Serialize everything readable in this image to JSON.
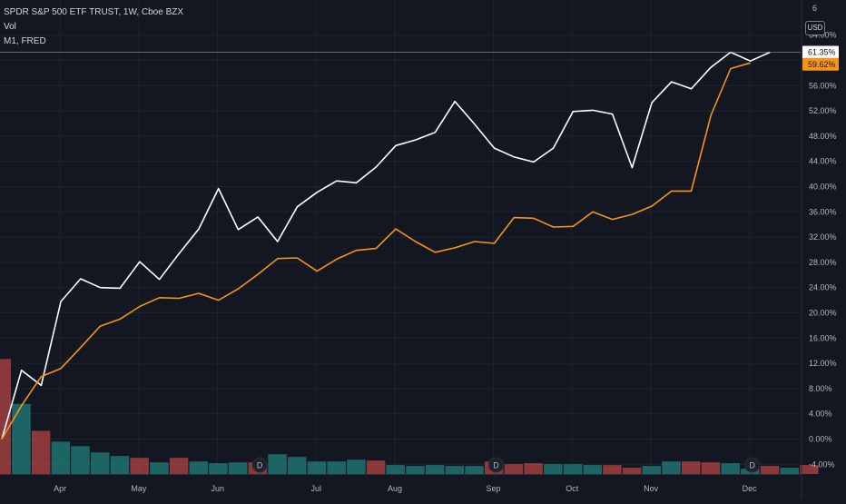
{
  "legend": {
    "symbol_line": "SPDR S&P 500 ETF TRUST, 1W, Cboe BZX",
    "vol_label": "Vol",
    "compare_label": "M1, FRED"
  },
  "currency_badge": "USD",
  "axis_top_clipped": "6",
  "dividend_marker": "D",
  "colors": {
    "background": "#131722",
    "grid": "#1e222d",
    "spy_line": "#ffffff",
    "m1_line": "#f7931a",
    "vol_up": "#26a69a",
    "vol_down": "#ef5350"
  },
  "chart_data": {
    "type": "line",
    "y_axis": {
      "unit": "%",
      "ticks": [
        "64.00%",
        "60.00%",
        "56.00%",
        "52.00%",
        "48.00%",
        "44.00%",
        "40.00%",
        "36.00%",
        "32.00%",
        "28.00%",
        "24.00%",
        "20.00%",
        "16.00%",
        "12.00%",
        "8.00%",
        "4.00%",
        "0.00%",
        "-4.00%"
      ],
      "ylim": [
        -6.2,
        66.6
      ],
      "grid": true
    },
    "x_axis": {
      "tick_labels": [
        "Apr",
        "May",
        "Jun",
        "Jul",
        "Aug",
        "Sep",
        "Oct",
        "Nov",
        "Dec"
      ],
      "tick_indices": [
        3,
        7,
        11,
        16,
        20,
        25,
        29,
        33,
        38
      ]
    },
    "series": [
      {
        "name": "SPDR S&P 500 ETF TRUST",
        "color": "#ffffff",
        "last_value_label": "61.35%",
        "values": [
          0,
          10.9,
          8.5,
          21.8,
          25.4,
          24.0,
          23.9,
          28.1,
          25.3,
          29.4,
          33.3,
          39.7,
          33.2,
          35.2,
          31.3,
          36.8,
          39.1,
          40.9,
          40.6,
          43.1,
          46.5,
          47.4,
          48.6,
          53.5,
          49.9,
          46.1,
          44.7,
          43.9,
          46.1,
          51.9,
          52.1,
          51.5,
          43.0,
          53.3,
          56.6,
          55.5,
          58.9,
          61.3,
          59.9,
          61.3
        ]
      },
      {
        "name": "M1",
        "color": "#f7931a",
        "last_value_label": "59.62%",
        "values": [
          0,
          5.3,
          9.9,
          11.2,
          14.5,
          17.9,
          19.0,
          21.0,
          22.4,
          22.3,
          23.1,
          22.0,
          23.8,
          26.1,
          28.6,
          28.7,
          26.6,
          28.5,
          29.9,
          30.2,
          33.3,
          31.3,
          29.6,
          30.3,
          31.3,
          31.0,
          35.1,
          35.0,
          33.6,
          33.7,
          36.0,
          34.8,
          35.6,
          36.9,
          39.3,
          39.3,
          51.3,
          58.7,
          59.6
        ]
      }
    ],
    "volume": {
      "values": [
        12.8,
        7.8,
        4.8,
        3.6,
        3.1,
        2.4,
        2.0,
        1.8,
        1.3,
        1.8,
        1.4,
        1.2,
        1.3,
        1.3,
        2.2,
        1.9,
        1.4,
        1.4,
        1.6,
        1.5,
        1.0,
        0.9,
        1.0,
        0.9,
        0.9,
        1.4,
        1.1,
        1.2,
        1.1,
        1.1,
        1.0,
        1.0,
        0.7,
        0.9,
        1.4,
        1.4,
        1.3,
        1.2,
        0.6,
        0.9,
        0.7,
        1.0
      ],
      "directions": [
        "down",
        "up",
        "down",
        "up",
        "up",
        "up",
        "up",
        "down",
        "up",
        "down",
        "up",
        "up",
        "up",
        "down",
        "up",
        "up",
        "up",
        "up",
        "up",
        "down",
        "up",
        "up",
        "up",
        "up",
        "up",
        "down",
        "down",
        "down",
        "up",
        "up",
        "up",
        "down",
        "down",
        "up",
        "up",
        "down",
        "down",
        "up",
        "up",
        "down",
        "up",
        "down"
      ],
      "dividend_indices": [
        13,
        25,
        38
      ]
    }
  }
}
